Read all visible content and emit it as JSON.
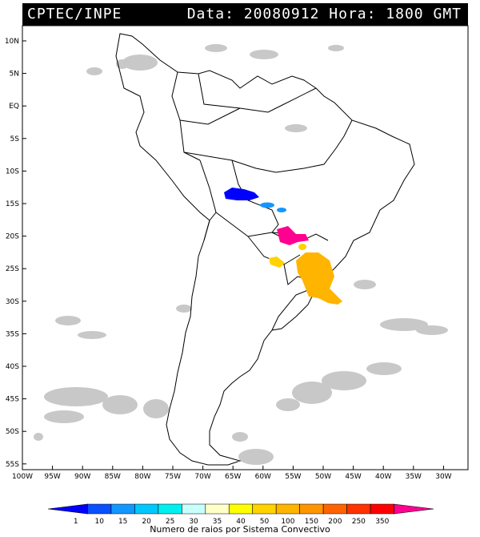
{
  "header": {
    "source": "CPTEC/INPE",
    "datetime": "Data: 20080912 Hora: 1800 GMT"
  },
  "axes": {
    "lat_labels": [
      "10N",
      "5N",
      "EQ",
      "5S",
      "10S",
      "15S",
      "20S",
      "25S",
      "30S",
      "35S",
      "40S",
      "45S",
      "50S",
      "55S"
    ],
    "lon_labels": [
      "100W",
      "95W",
      "90W",
      "85W",
      "80W",
      "75W",
      "70W",
      "65W",
      "60W",
      "55W",
      "50W",
      "45W",
      "40W",
      "35W",
      "30W"
    ]
  },
  "colorbar": {
    "title": "Numero de raios por Sistema Convectivo",
    "ticks": [
      "1",
      "10",
      "15",
      "20",
      "25",
      "30",
      "35",
      "40",
      "50",
      "100",
      "150",
      "200",
      "250",
      "350"
    ],
    "colors": [
      "#0000ff",
      "#0a50ff",
      "#1496ff",
      "#00c8ff",
      "#00f0f0",
      "#c8ffff",
      "#ffffc8",
      "#ffff00",
      "#ffd200",
      "#ffb400",
      "#ff9600",
      "#ff6400",
      "#ff3200",
      "#ff0000",
      "#ff0090"
    ]
  },
  "colors": {
    "cloud": "#c8c8c8",
    "coast": "#000000",
    "blue": "#0000ff",
    "lightblue": "#1496ff",
    "magenta": "#ff0090",
    "yellow": "#ffd200",
    "orange": "#ffb400"
  }
}
